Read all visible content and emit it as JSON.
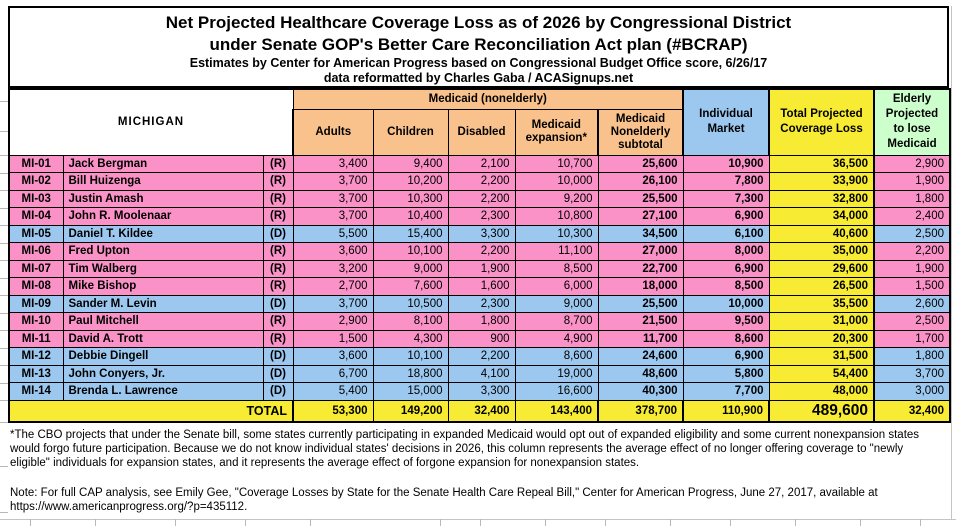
{
  "title": {
    "line1": "Net Projected Healthcare Coverage Loss as of 2026 by Congressional District",
    "line2": "under Senate GOP's Better Care Reconciliation Act plan (#BCRAP)",
    "line3": "Estimates by Center for American Progress based on Congressional Budget Office score, 6/26/17",
    "line4": "data reformatted by Charles Gaba / ACASignups.net"
  },
  "chart_data": {
    "type": "table",
    "state": "MICHIGAN",
    "columns": {
      "medicaid_group": "Medicaid (nonelderly)",
      "adults": "Adults",
      "children": "Children",
      "disabled": "Disabled",
      "expansion": "Medicaid expansion*",
      "subtotal": "Medicaid Nonelderly subtotal",
      "individual_market": "Individual Market",
      "total": "Total Projected Coverage Loss",
      "elderly": "Elderly Projected to lose Medicaid"
    },
    "rows": [
      {
        "district": "MI-01",
        "name": "Jack Bergman",
        "party": "(R)",
        "adults": "3,400",
        "children": "9,400",
        "disabled": "2,100",
        "expansion": "10,700",
        "subtotal": "25,600",
        "individual": "10,900",
        "total": "36,500",
        "elderly": "2,900"
      },
      {
        "district": "MI-02",
        "name": "Bill Huizenga",
        "party": "(R)",
        "adults": "3,700",
        "children": "10,200",
        "disabled": "2,200",
        "expansion": "10,000",
        "subtotal": "26,100",
        "individual": "7,800",
        "total": "33,900",
        "elderly": "1,900"
      },
      {
        "district": "MI-03",
        "name": "Justin Amash",
        "party": "(R)",
        "adults": "3,700",
        "children": "10,300",
        "disabled": "2,200",
        "expansion": "9,200",
        "subtotal": "25,500",
        "individual": "7,300",
        "total": "32,800",
        "elderly": "1,800"
      },
      {
        "district": "MI-04",
        "name": "John R. Moolenaar",
        "party": "(R)",
        "adults": "3,700",
        "children": "10,400",
        "disabled": "2,300",
        "expansion": "10,800",
        "subtotal": "27,100",
        "individual": "6,900",
        "total": "34,000",
        "elderly": "2,400"
      },
      {
        "district": "MI-05",
        "name": "Daniel T. Kildee",
        "party": "(D)",
        "adults": "5,500",
        "children": "15,400",
        "disabled": "3,300",
        "expansion": "10,300",
        "subtotal": "34,500",
        "individual": "6,100",
        "total": "40,600",
        "elderly": "2,500"
      },
      {
        "district": "MI-06",
        "name": "Fred Upton",
        "party": "(R)",
        "adults": "3,600",
        "children": "10,100",
        "disabled": "2,200",
        "expansion": "11,100",
        "subtotal": "27,000",
        "individual": "8,000",
        "total": "35,000",
        "elderly": "2,200"
      },
      {
        "district": "MI-07",
        "name": "Tim Walberg",
        "party": "(R)",
        "adults": "3,200",
        "children": "9,000",
        "disabled": "1,900",
        "expansion": "8,500",
        "subtotal": "22,700",
        "individual": "6,900",
        "total": "29,600",
        "elderly": "1,900"
      },
      {
        "district": "MI-08",
        "name": "Mike Bishop",
        "party": "(R)",
        "adults": "2,700",
        "children": "7,600",
        "disabled": "1,600",
        "expansion": "6,000",
        "subtotal": "18,000",
        "individual": "8,500",
        "total": "26,500",
        "elderly": "1,500"
      },
      {
        "district": "MI-09",
        "name": "Sander M. Levin",
        "party": "(D)",
        "adults": "3,700",
        "children": "10,500",
        "disabled": "2,300",
        "expansion": "9,000",
        "subtotal": "25,500",
        "individual": "10,000",
        "total": "35,500",
        "elderly": "2,600"
      },
      {
        "district": "MI-10",
        "name": "Paul Mitchell",
        "party": "(R)",
        "adults": "2,900",
        "children": "8,100",
        "disabled": "1,800",
        "expansion": "8,700",
        "subtotal": "21,500",
        "individual": "9,500",
        "total": "31,000",
        "elderly": "2,500"
      },
      {
        "district": "MI-11",
        "name": "David A. Trott",
        "party": "(R)",
        "adults": "1,500",
        "children": "4,300",
        "disabled": "900",
        "expansion": "4,900",
        "subtotal": "11,700",
        "individual": "8,600",
        "total": "20,300",
        "elderly": "1,700"
      },
      {
        "district": "MI-12",
        "name": "Debbie Dingell",
        "party": "(D)",
        "adults": "3,600",
        "children": "10,100",
        "disabled": "2,200",
        "expansion": "8,600",
        "subtotal": "24,600",
        "individual": "6,900",
        "total": "31,500",
        "elderly": "1,800"
      },
      {
        "district": "MI-13",
        "name": "John Conyers, Jr.",
        "party": "(D)",
        "adults": "6,700",
        "children": "18,800",
        "disabled": "4,100",
        "expansion": "19,000",
        "subtotal": "48,600",
        "individual": "5,800",
        "total": "54,400",
        "elderly": "3,700"
      },
      {
        "district": "MI-14",
        "name": "Brenda L. Lawrence",
        "party": "(D)",
        "adults": "5,400",
        "children": "15,000",
        "disabled": "3,300",
        "expansion": "16,600",
        "subtotal": "40,300",
        "individual": "7,700",
        "total": "48,000",
        "elderly": "3,000"
      }
    ],
    "total_row": {
      "label": "TOTAL",
      "adults": "53,300",
      "children": "149,200",
      "disabled": "32,400",
      "expansion": "143,400",
      "subtotal": "378,700",
      "individual": "110,900",
      "total": "489,600",
      "elderly": "32,400"
    }
  },
  "footnotes": {
    "asterisk": "*The CBO projects that under the Senate bill, some states currently participating in expanded Medicaid would opt out of expanded eligibility and some current nonexpansion states would forgo future participation. Because we do not know individual states' decisions in 2026, this column represents the average effect of no longer offering coverage to \"newly eligible\" individuals for expansion states, and it represents the average effect of forgone expansion for nonexpansion states.",
    "note": "Note: For full CAP analysis, see Emily Gee, \"Coverage Losses by State for the Senate Health Care Repeal Bill,\" Center for American Progress, June 27, 2017, available at https://www.americanprogress.org/?p=435112."
  },
  "colors": {
    "peach": "#f9c18c",
    "pink": "#fa92c7",
    "blue": "#9cc8f0",
    "yellow": "#f7eb33",
    "green": "#ccffcc"
  }
}
